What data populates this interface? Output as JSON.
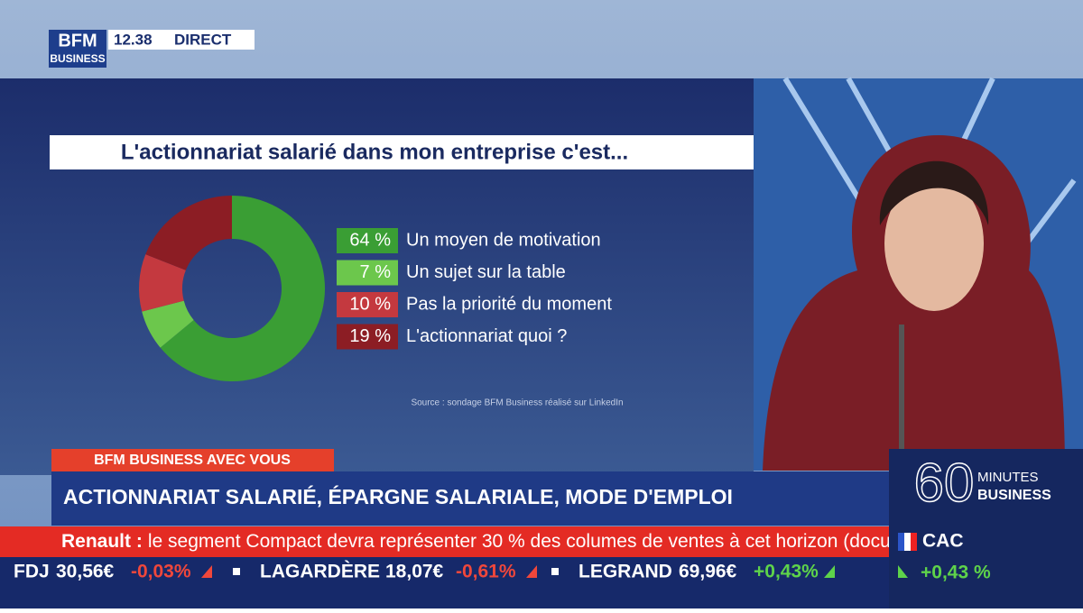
{
  "header": {
    "logo_top": "BFM",
    "logo_bottom": "BUSINESS",
    "time": "12.38",
    "live": "DIRECT"
  },
  "chart_data": {
    "type": "pie",
    "title": "L'actionnariat salarié dans mon entreprise c'est...",
    "categories": [
      "Un moyen de motivation",
      "Un sujet sur la table",
      "Pas la priorité du moment",
      "L'actionnariat quoi ?"
    ],
    "values": [
      64,
      7,
      10,
      19
    ],
    "value_labels": [
      "64 %",
      "7 %",
      "10 %",
      "19 %"
    ],
    "colors": [
      "#3a9e34",
      "#6cc74c",
      "#c4393f",
      "#8c1d24"
    ],
    "source": "Source : sondage BFM Business réalisé sur LinkedIn"
  },
  "banner": {
    "tag": "BFM BUSINESS AVEC VOUS",
    "headline": "ACTIONNARIAT SALARIÉ, ÉPARGNE SALARIALE, MODE D'EMPLOI"
  },
  "news": {
    "company": "Renault :",
    "text": "le segment Compact devra représenter 30 % des columes de ventes à cet horizon (document)."
  },
  "show": {
    "number": "60",
    "line1": "MINUTES",
    "line2": "BUSINESS"
  },
  "ticker": [
    {
      "name": "FDJ",
      "price": "30,56€",
      "change": "-0,03%"
    },
    {
      "name": "LAGARDÈRE",
      "price": "18,07€",
      "change": "-0,61%"
    },
    {
      "name": "LEGRAND",
      "price": "69,96€",
      "change": "+0,43%"
    }
  ],
  "index": {
    "name": "CAC",
    "change": "+0,43 %"
  }
}
